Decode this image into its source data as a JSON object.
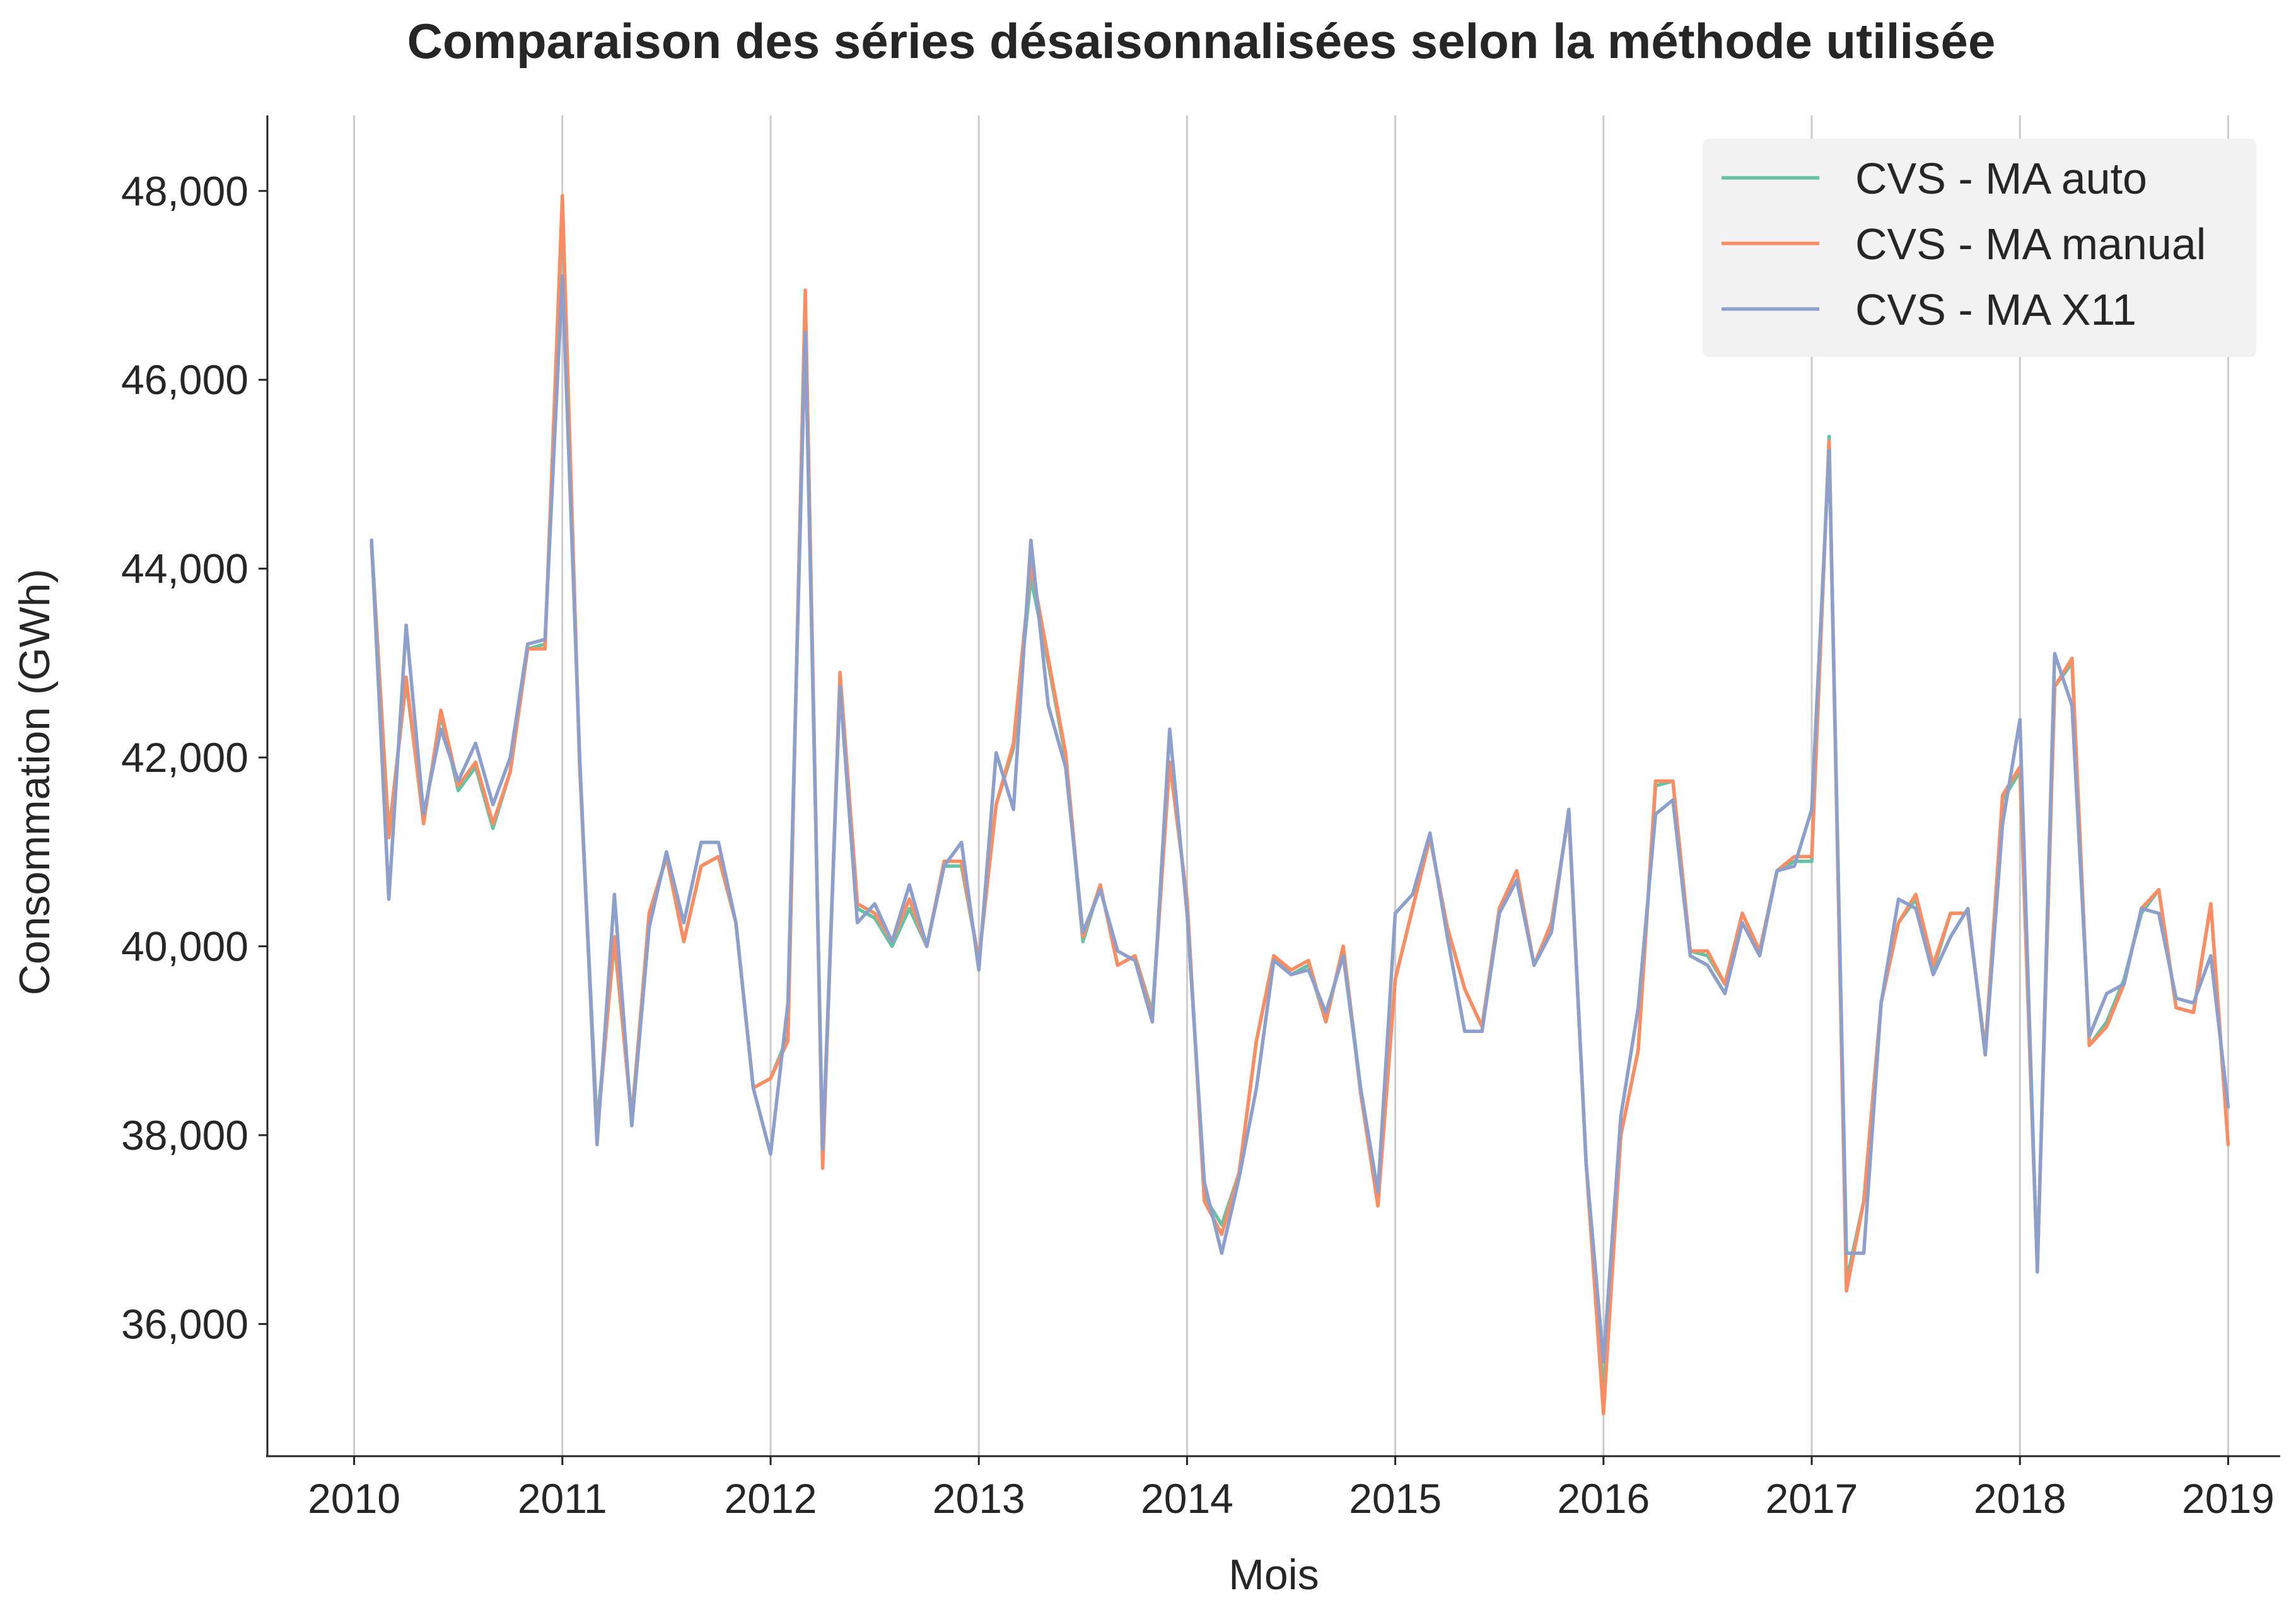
{
  "chart_data": {
    "type": "line",
    "title": "Comparaison des séries désaisonnalisées selon la méthode utilisée",
    "xlabel": "Mois",
    "ylabel": "Consommation (GWh)",
    "x_ticks": [
      "2010",
      "2011",
      "2012",
      "2013",
      "2014",
      "2015",
      "2016",
      "2017",
      "2018",
      "2019"
    ],
    "y_ticks": [
      "36,000",
      "38,000",
      "40,000",
      "42,000",
      "44,000",
      "46,000",
      "48,000"
    ],
    "y_tick_values": [
      36000,
      38000,
      40000,
      42000,
      44000,
      46000,
      48000
    ],
    "xlim": [
      "2009-08",
      "2019-04"
    ],
    "ylim": [
      34600,
      48800
    ],
    "grid": "vertical",
    "legend_position": "top-right",
    "start": "2010-02",
    "series": [
      {
        "name": "CVS - MA auto",
        "color": "#66c2a5",
        "values": [
          44300,
          41200,
          42800,
          41350,
          42450,
          41650,
          41900,
          41250,
          41850,
          43150,
          43200,
          47800,
          41900,
          38100,
          40050,
          38200,
          40300,
          40950,
          40050,
          40850,
          40950,
          40250,
          38500,
          38600,
          39050,
          46900,
          37700,
          42800,
          40400,
          40300,
          40000,
          40400,
          40000,
          40850,
          40850,
          39850,
          41500,
          42100,
          43900,
          43000,
          42000,
          40050,
          40650,
          39800,
          39900,
          39300,
          41950,
          40500,
          37350,
          37050,
          37600,
          39000,
          39900,
          39700,
          39800,
          39200,
          40000,
          38500,
          37350,
          39650,
          40400,
          41150,
          40200,
          39550,
          39150,
          40400,
          40800,
          39800,
          40250,
          41400,
          37700,
          35250,
          38000,
          38900,
          41700,
          41750,
          39950,
          39900,
          39600,
          40350,
          39950,
          40800,
          40900,
          40900,
          45400,
          36450,
          37300,
          39400,
          40250,
          40500,
          39750,
          40350,
          40350,
          38900,
          41550,
          41850,
          36600,
          42750,
          43000,
          38950,
          39200,
          39650,
          40350,
          40600,
          39350,
          39300,
          40450,
          37900
        ]
      },
      {
        "name": "CVS - MA manual",
        "color": "#fc8d62",
        "values": [
          44250,
          41150,
          42850,
          41300,
          42500,
          41700,
          41950,
          41300,
          41850,
          43150,
          43150,
          47950,
          41900,
          38000,
          40100,
          38150,
          40350,
          40950,
          40050,
          40850,
          40950,
          40250,
          38500,
          38600,
          39000,
          46950,
          37650,
          42900,
          40450,
          40350,
          40050,
          40500,
          40000,
          40900,
          40900,
          39850,
          41500,
          42150,
          44050,
          43050,
          42050,
          40100,
          40650,
          39800,
          39900,
          39250,
          41950,
          40500,
          37300,
          36950,
          37600,
          39000,
          39900,
          39750,
          39850,
          39200,
          40000,
          38450,
          37250,
          39650,
          40400,
          41150,
          40200,
          39550,
          39150,
          40400,
          40800,
          39800,
          40250,
          41400,
          37700,
          35050,
          38000,
          38900,
          41750,
          41750,
          39950,
          39950,
          39600,
          40350,
          39950,
          40800,
          40950,
          40950,
          45350,
          36350,
          37300,
          39400,
          40250,
          40550,
          39800,
          40350,
          40350,
          38900,
          41600,
          41900,
          36600,
          42750,
          43050,
          38950,
          39150,
          39600,
          40400,
          40600,
          39350,
          39300,
          40450,
          37900
        ]
      },
      {
        "name": "CVS - MA X11",
        "color": "#8da0cb",
        "values": [
          44300,
          40500,
          43400,
          41400,
          42300,
          41750,
          42150,
          41500,
          42000,
          43200,
          43250,
          47100,
          42000,
          37900,
          40550,
          38100,
          40200,
          41000,
          40250,
          41100,
          41100,
          40250,
          38500,
          37800,
          39400,
          46500,
          37850,
          42750,
          40250,
          40450,
          40050,
          40650,
          40000,
          40850,
          41100,
          39750,
          42050,
          41450,
          44300,
          42550,
          41900,
          40150,
          40600,
          39950,
          39850,
          39200,
          42300,
          40350,
          37500,
          36750,
          37550,
          38500,
          39850,
          39700,
          39750,
          39300,
          39900,
          38500,
          37400,
          40350,
          40550,
          41200,
          40100,
          39100,
          39100,
          40350,
          40700,
          39800,
          40150,
          41450,
          37700,
          35600,
          38200,
          39350,
          41400,
          41550,
          39900,
          39800,
          39500,
          40250,
          39900,
          40800,
          40850,
          41450,
          45250,
          36750,
          36750,
          39400,
          40500,
          40400,
          39700,
          40100,
          40400,
          38850,
          41300,
          42400,
          36550,
          43100,
          42550,
          39050,
          39500,
          39600,
          40400,
          40350,
          39450,
          39400,
          39900,
          38300
        ]
      }
    ]
  }
}
